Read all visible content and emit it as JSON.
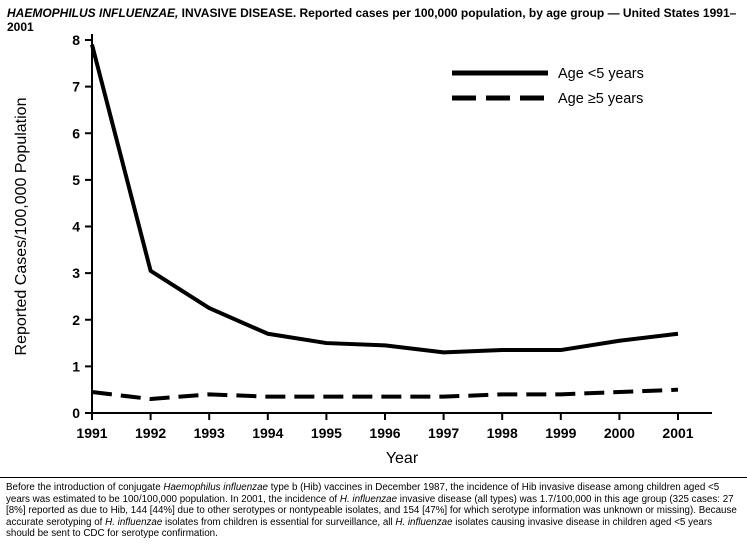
{
  "title": {
    "segments": [
      {
        "text": "HAEMOPHILUS INFLUENZAE,",
        "italic": true
      },
      {
        "text": " INVASIVE DISEASE. Reported cases per 100,000 population, by age group — United States 1991–2001",
        "italic": false
      }
    ]
  },
  "chart_data": {
    "type": "line",
    "title": "Haemophilus influenzae, invasive disease. Reported cases per 100,000 population, by age group — United States 1991–2001",
    "x": [
      1991,
      1992,
      1993,
      1994,
      1995,
      1996,
      1997,
      1998,
      1999,
      2000,
      2001
    ],
    "series": [
      {
        "name": "Age <5 years",
        "style": "solid",
        "values": [
          7.9,
          3.05,
          2.25,
          1.7,
          1.5,
          1.45,
          1.3,
          1.35,
          1.35,
          1.55,
          1.7
        ]
      },
      {
        "name": "Age ≥5 years",
        "style": "dashed",
        "values": [
          0.45,
          0.3,
          0.4,
          0.35,
          0.35,
          0.35,
          0.35,
          0.4,
          0.4,
          0.45,
          0.5
        ]
      }
    ],
    "xlabel": "Year",
    "ylabel": "Reported Cases/100,000 Population",
    "ylim": [
      0,
      8
    ],
    "yticks": [
      0,
      1,
      2,
      3,
      4,
      5,
      6,
      7,
      8
    ],
    "grid": "off",
    "legend_position": "top-right-inside",
    "line_color": "#000000"
  },
  "footnote": {
    "segments": [
      {
        "text": "Before the introduction of conjugate ",
        "italic": false
      },
      {
        "text": "Haemophilus influenzae",
        "italic": true
      },
      {
        "text": " type b (Hib) vaccines in December 1987, the incidence of Hib invasive disease among children aged <5 years was estimated to be 100/100,000 population. In 2001, the incidence of ",
        "italic": false
      },
      {
        "text": "H. influenzae",
        "italic": true
      },
      {
        "text": " invasive disease (all types) was 1.7/100,000 in this age group (325 cases: 27 [8%] reported as due to Hib, 144 [44%] due to other serotypes or nontypeable isolates, and 154 [47%] for which serotype information was unknown or missing). Because accurate serotyping of ",
        "italic": false
      },
      {
        "text": "H. influenzae",
        "italic": true
      },
      {
        "text": " isolates from children is essential for surveillance, all ",
        "italic": false
      },
      {
        "text": "H. influenzae",
        "italic": true
      },
      {
        "text": " isolates causing invasive disease in children aged <5 years should be sent to CDC for serotype confirmation.",
        "italic": false
      }
    ]
  }
}
